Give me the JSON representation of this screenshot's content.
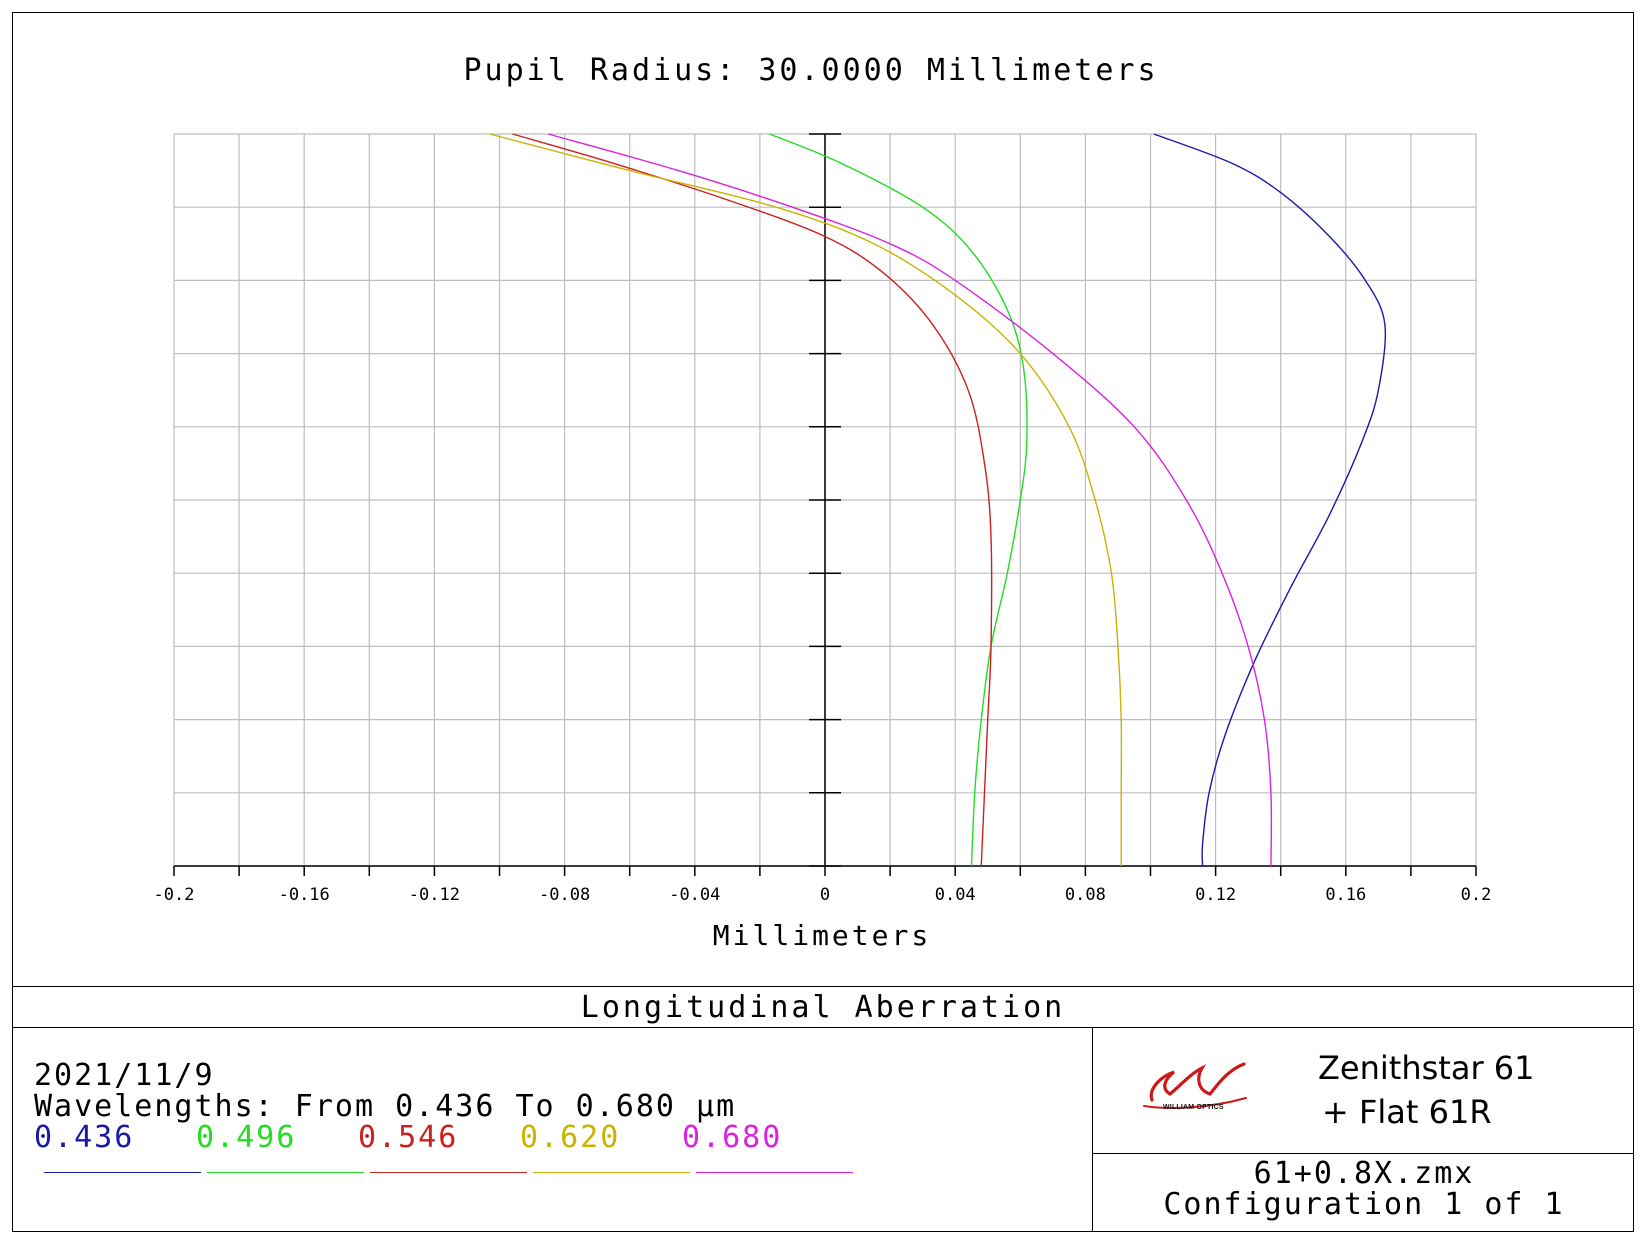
{
  "chart_data": {
    "type": "line",
    "title": "Pupil Radius: 30.0000 Millimeters",
    "xlabel": "Millimeters",
    "ylabel": "",
    "xlim": [
      -0.2,
      0.2
    ],
    "ylim": [
      0,
      1
    ],
    "xticks": [
      "-0.2",
      "-0.16",
      "-0.12",
      "-0.08",
      "-0.04",
      "0",
      "0.04",
      "0.08",
      "0.12",
      "0.16",
      "0.2"
    ],
    "grid": true,
    "series": [
      {
        "name": "0.436",
        "color": "#1a1aa8",
        "points": [
          [
            0.116,
            0
          ],
          [
            0.116,
            0.03
          ],
          [
            0.118,
            0.1
          ],
          [
            0.123,
            0.18
          ],
          [
            0.132,
            0.28
          ],
          [
            0.143,
            0.38
          ],
          [
            0.155,
            0.48
          ],
          [
            0.165,
            0.58
          ],
          [
            0.17,
            0.65
          ],
          [
            0.172,
            0.74
          ],
          [
            0.166,
            0.8
          ],
          [
            0.155,
            0.86
          ],
          [
            0.14,
            0.92
          ],
          [
            0.125,
            0.96
          ],
          [
            0.101,
            1.0
          ]
        ]
      },
      {
        "name": "0.496",
        "color": "#22dd22",
        "points": [
          [
            0.045,
            0
          ],
          [
            0.046,
            0.1
          ],
          [
            0.048,
            0.2
          ],
          [
            0.051,
            0.3
          ],
          [
            0.056,
            0.4
          ],
          [
            0.06,
            0.5
          ],
          [
            0.062,
            0.58
          ],
          [
            0.061,
            0.68
          ],
          [
            0.056,
            0.76
          ],
          [
            0.045,
            0.84
          ],
          [
            0.03,
            0.9
          ],
          [
            0.005,
            0.96
          ],
          [
            -0.017,
            1.0
          ]
        ]
      },
      {
        "name": "0.546",
        "color": "#cc2020",
        "points": [
          [
            0.048,
            0
          ],
          [
            0.049,
            0.1
          ],
          [
            0.05,
            0.2
          ],
          [
            0.051,
            0.3
          ],
          [
            0.051,
            0.45
          ],
          [
            0.049,
            0.55
          ],
          [
            0.044,
            0.65
          ],
          [
            0.033,
            0.74
          ],
          [
            0.018,
            0.81
          ],
          [
            0.0,
            0.86
          ],
          [
            -0.03,
            0.91
          ],
          [
            -0.065,
            0.96
          ],
          [
            -0.096,
            1.0
          ]
        ]
      },
      {
        "name": "0.620",
        "color": "#c8b400",
        "points": [
          [
            0.091,
            0
          ],
          [
            0.091,
            0.1
          ],
          [
            0.091,
            0.2
          ],
          [
            0.09,
            0.3
          ],
          [
            0.088,
            0.4
          ],
          [
            0.083,
            0.5
          ],
          [
            0.075,
            0.6
          ],
          [
            0.06,
            0.7
          ],
          [
            0.04,
            0.78
          ],
          [
            0.015,
            0.85
          ],
          [
            -0.015,
            0.9
          ],
          [
            -0.06,
            0.95
          ],
          [
            -0.103,
            1.0
          ]
        ]
      },
      {
        "name": "0.680",
        "color": "#dd22dd",
        "points": [
          [
            0.137,
            0
          ],
          [
            0.137,
            0.1
          ],
          [
            0.135,
            0.2
          ],
          [
            0.13,
            0.3
          ],
          [
            0.122,
            0.4
          ],
          [
            0.111,
            0.5
          ],
          [
            0.095,
            0.6
          ],
          [
            0.07,
            0.7
          ],
          [
            0.04,
            0.8
          ],
          [
            0.02,
            0.85
          ],
          [
            -0.01,
            0.9
          ],
          [
            -0.045,
            0.95
          ],
          [
            -0.085,
            1.0
          ]
        ]
      }
    ]
  },
  "panel": {
    "plot_title": "Longitudinal Aberration",
    "date": "2021/11/9",
    "wavelengths_line": "Wavelengths: From 0.436 To 0.680 µm",
    "wavelengths": [
      {
        "label": "0.436",
        "color": "#1a1aa8"
      },
      {
        "label": "0.496",
        "color": "#22dd22"
      },
      {
        "label": "0.546",
        "color": "#cc2020"
      },
      {
        "label": "0.620",
        "color": "#c8b400"
      },
      {
        "label": "0.680",
        "color": "#dd22dd"
      }
    ],
    "brand_line1": "Zenithstar 61",
    "brand_line2": "+ Flat 61R",
    "logo_text": "WILLIAM OPTICS",
    "logo_color": "#cc1a1a",
    "file_name": "61+0.8X.zmx",
    "configuration": "Configuration 1 of 1"
  }
}
